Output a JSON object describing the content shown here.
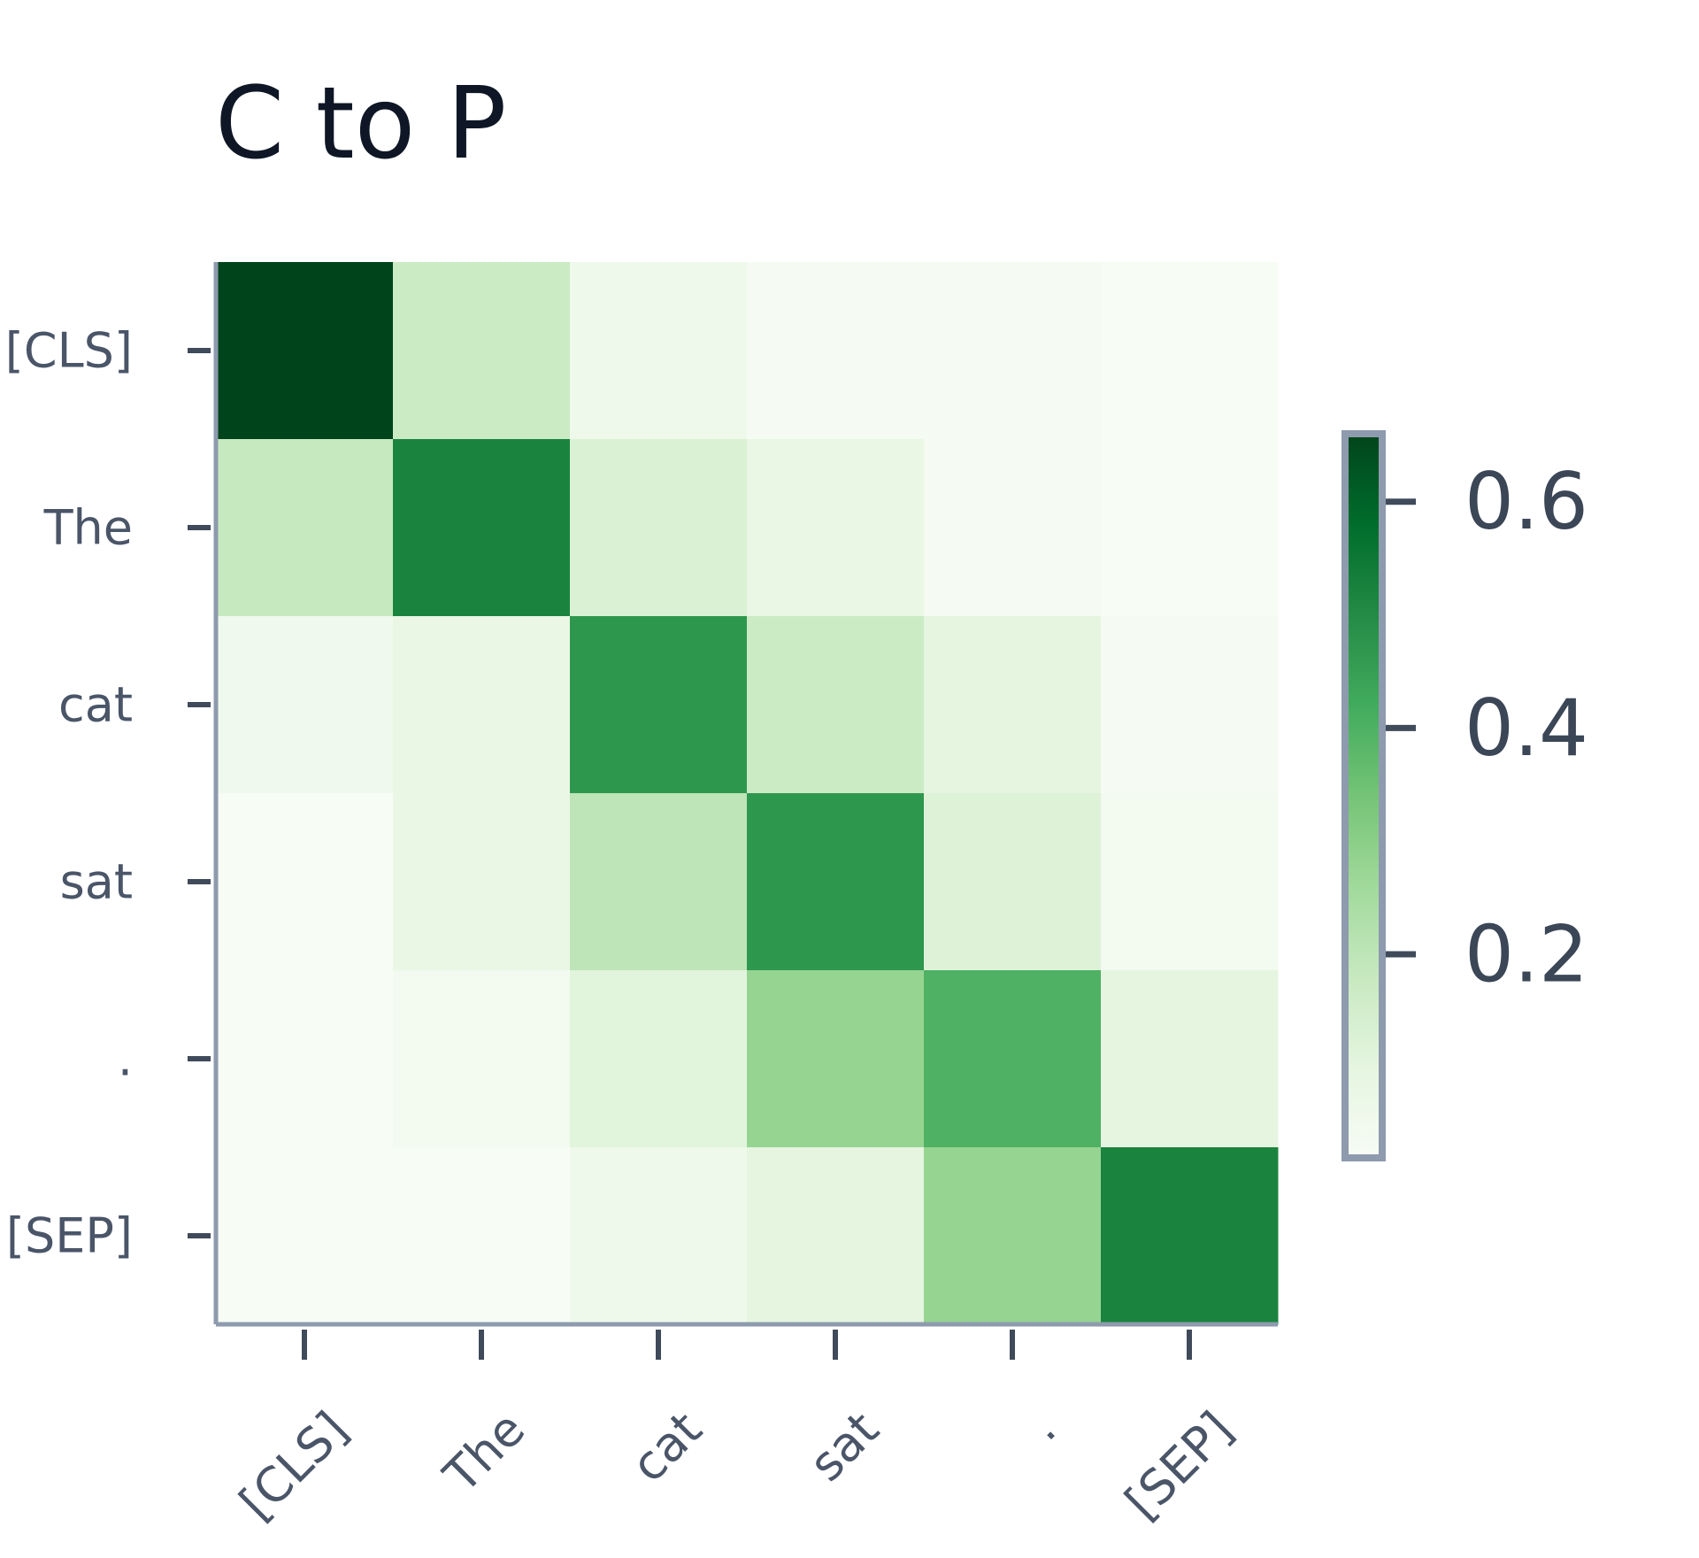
{
  "chart_data": {
    "type": "heatmap",
    "title": "C to P",
    "x_categories": [
      "[CLS]",
      "The",
      "cat",
      "sat",
      ".",
      "[SEP]"
    ],
    "y_categories": [
      "[CLS]",
      "The",
      "cat",
      "sat",
      ".",
      "[SEP]"
    ],
    "values": [
      [
        0.66,
        0.17,
        0.06,
        0.03,
        0.03,
        0.02
      ],
      [
        0.18,
        0.52,
        0.13,
        0.08,
        0.03,
        0.02
      ],
      [
        0.05,
        0.08,
        0.47,
        0.17,
        0.1,
        0.03
      ],
      [
        0.02,
        0.08,
        0.2,
        0.47,
        0.12,
        0.04
      ],
      [
        0.02,
        0.04,
        0.11,
        0.28,
        0.4,
        0.1
      ],
      [
        0.02,
        0.02,
        0.06,
        0.1,
        0.28,
        0.52
      ]
    ],
    "colorscale": "Greens",
    "colorbar": {
      "min": 0.02,
      "max": 0.66,
      "ticks": [
        0.2,
        0.4,
        0.6
      ],
      "tick_labels": [
        "0.2",
        "0.4",
        "0.6"
      ]
    },
    "xlabel": "",
    "ylabel": ""
  }
}
